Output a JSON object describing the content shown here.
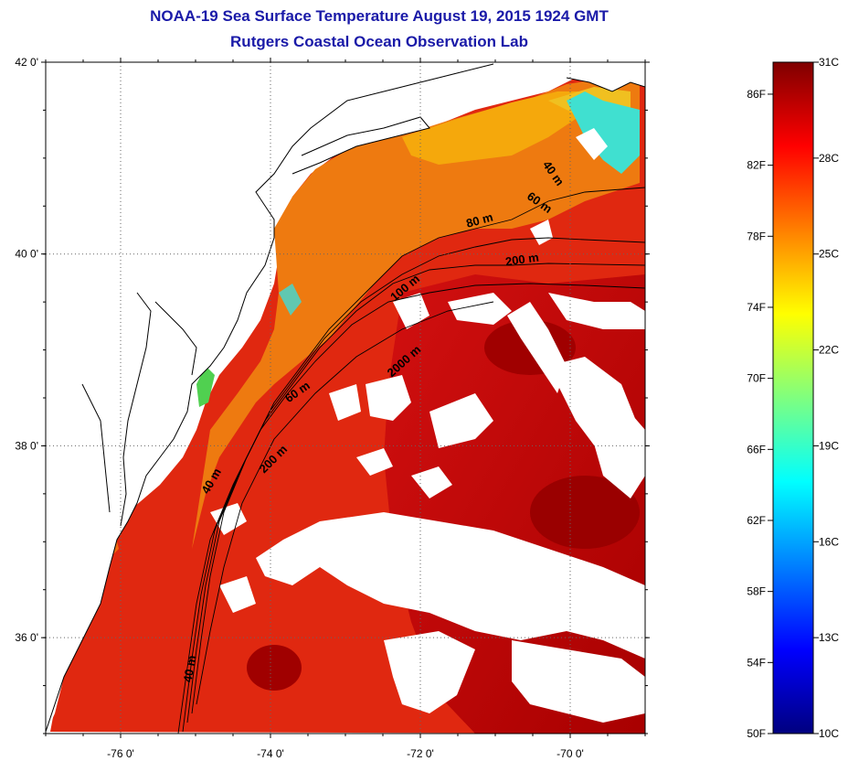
{
  "title": {
    "line1": "NOAA-19 Sea Surface Temperature August 19, 2015 1924 GMT",
    "line2": "Rutgers Coastal Ocean Observation Lab"
  },
  "map": {
    "lat_range": [
      35.0,
      42.0
    ],
    "lon_range": [
      -77.0,
      -69.0
    ],
    "lat_ticks": [
      {
        "value": 42,
        "label": "42 0'"
      },
      {
        "value": 40,
        "label": "40 0'"
      },
      {
        "value": 38,
        "label": "38 0'"
      },
      {
        "value": 36,
        "label": "36 0'"
      }
    ],
    "lon_ticks": [
      {
        "value": -76,
        "label": "-76 0'"
      },
      {
        "value": -74,
        "label": "-74 0'"
      },
      {
        "value": -72,
        "label": "-72 0'"
      },
      {
        "value": -70,
        "label": "-70 0'"
      }
    ],
    "grid": "dotted",
    "depth_labels": [
      {
        "text": "40 m"
      },
      {
        "text": "60 m"
      },
      {
        "text": "80 m"
      },
      {
        "text": "200 m"
      },
      {
        "text": "100 m"
      },
      {
        "text": "2000 m"
      },
      {
        "text": "60 m"
      },
      {
        "text": "200 m"
      },
      {
        "text": "40 m"
      },
      {
        "text": "40 m"
      }
    ]
  },
  "colorbar": {
    "celsius_range": [
      10,
      31
    ],
    "fahrenheit_labels": [
      "86F",
      "82F",
      "78F",
      "74F",
      "70F",
      "66F",
      "62F",
      "58F",
      "54F",
      "50F"
    ],
    "celsius_labels": [
      "31C",
      "28C",
      "25C",
      "22C",
      "19C",
      "16C",
      "13C",
      "10C"
    ],
    "colors": [
      "#00007f",
      "#0000ff",
      "#007fff",
      "#00ffff",
      "#7fff7f",
      "#ffff00",
      "#ff7f00",
      "#ff0000",
      "#7f0000"
    ]
  }
}
